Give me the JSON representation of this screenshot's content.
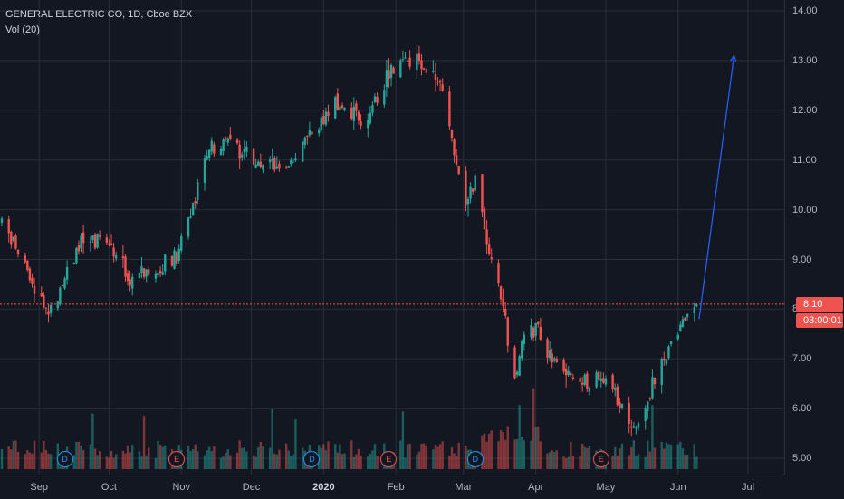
{
  "legend": {
    "symbol_line": "GENERAL ELECTRIC CO, 1D, Cboe BZX",
    "volume_label": "Vol (20)"
  },
  "current_price": {
    "label": "8.10",
    "countdown": "03:00:01",
    "value": 8.1
  },
  "colors": {
    "up": "#26a69a",
    "down": "#ef5350",
    "background": "#131722",
    "grid": "#2a2e39",
    "arrow": "#2962ff"
  },
  "events": [
    {
      "type": "D",
      "label": "D",
      "month": "Sep"
    },
    {
      "type": "E",
      "label": "E",
      "month": "Oct"
    },
    {
      "type": "D",
      "label": "D",
      "month": "Dec"
    },
    {
      "type": "E",
      "label": "E",
      "month": "Jan"
    },
    {
      "type": "D",
      "label": "D",
      "month": "Mar"
    },
    {
      "type": "E",
      "label": "E",
      "month": "Apr"
    }
  ],
  "chart_data": {
    "type": "candlestick",
    "title": "GENERAL ELECTRIC CO, 1D, Cboe BZX",
    "y_ticks": [
      "14.00",
      "13.00",
      "12.00",
      "11.00",
      "10.00",
      "9.00",
      "8.00",
      "7.00",
      "6.00",
      "5.00"
    ],
    "x_ticks": [
      "Sep",
      "Oct",
      "Nov",
      "Dec",
      "2020",
      "Feb",
      "Mar",
      "Apr",
      "May",
      "Jun",
      "Jul"
    ],
    "ylim": [
      4.8,
      14.2
    ],
    "trend_keypoints": [
      {
        "date": "2019-08-16",
        "close": 9.8
      },
      {
        "date": "2019-08-27",
        "close": 8.7
      },
      {
        "date": "2019-09-05",
        "close": 7.9
      },
      {
        "date": "2019-09-18",
        "close": 9.3
      },
      {
        "date": "2019-10-01",
        "close": 9.4
      },
      {
        "date": "2019-10-10",
        "close": 8.6
      },
      {
        "date": "2019-10-30",
        "close": 9.05
      },
      {
        "date": "2019-11-05",
        "close": 10.0
      },
      {
        "date": "2019-11-13",
        "close": 11.2
      },
      {
        "date": "2019-11-20",
        "close": 11.4
      },
      {
        "date": "2019-12-05",
        "close": 10.9
      },
      {
        "date": "2019-12-19",
        "close": 11.0
      },
      {
        "date": "2020-01-06",
        "close": 12.1
      },
      {
        "date": "2020-01-20",
        "close": 11.8
      },
      {
        "date": "2020-01-29",
        "close": 12.8
      },
      {
        "date": "2020-02-12",
        "close": 13.0
      },
      {
        "date": "2020-02-20",
        "close": 12.5
      },
      {
        "date": "2020-03-02",
        "close": 10.2
      },
      {
        "date": "2020-03-06",
        "close": 10.6
      },
      {
        "date": "2020-03-12",
        "close": 9.0
      },
      {
        "date": "2020-03-17",
        "close": 8.3
      },
      {
        "date": "2020-03-23",
        "close": 6.5
      },
      {
        "date": "2020-03-26",
        "close": 7.4
      },
      {
        "date": "2020-04-02",
        "close": 7.6
      },
      {
        "date": "2020-04-09",
        "close": 6.9
      },
      {
        "date": "2020-04-21",
        "close": 6.5
      },
      {
        "date": "2020-05-01",
        "close": 6.6
      },
      {
        "date": "2020-05-14",
        "close": 5.6
      },
      {
        "date": "2020-05-22",
        "close": 6.6
      },
      {
        "date": "2020-06-03",
        "close": 7.7
      },
      {
        "date": "2020-06-08",
        "close": 8.1
      }
    ],
    "projection_arrow": {
      "from": {
        "date": "2020-06-10",
        "price": 7.8
      },
      "to": {
        "date": "2020-06-25",
        "price": 13.1
      }
    },
    "volume": {
      "name": "Vol (20)"
    }
  }
}
